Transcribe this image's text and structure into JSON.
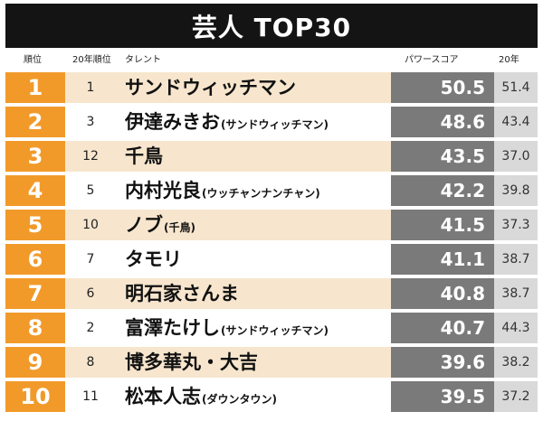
{
  "title": "芸人 TOP30",
  "headers": {
    "rank": "順位",
    "prev_rank": "20年順位",
    "talent": "タレント",
    "score": "パワースコア",
    "prev_score": "20年"
  },
  "rows": [
    {
      "rank": "1",
      "prev_rank": "1",
      "name": "サンドウィッチマン",
      "sub": "",
      "score": "50.5",
      "prev_score": "51.4"
    },
    {
      "rank": "2",
      "prev_rank": "3",
      "name": "伊達みきお",
      "sub": "(サンドウィッチマン)",
      "score": "48.6",
      "prev_score": "43.4"
    },
    {
      "rank": "3",
      "prev_rank": "12",
      "name": "千鳥",
      "sub": "",
      "score": "43.5",
      "prev_score": "37.0"
    },
    {
      "rank": "4",
      "prev_rank": "5",
      "name": "内村光良",
      "sub": "(ウッチャンナンチャン)",
      "score": "42.2",
      "prev_score": "39.8"
    },
    {
      "rank": "5",
      "prev_rank": "10",
      "name": "ノブ",
      "sub": "(千鳥)",
      "score": "41.5",
      "prev_score": "37.3"
    },
    {
      "rank": "6",
      "prev_rank": "7",
      "name": "タモリ",
      "sub": "",
      "score": "41.1",
      "prev_score": "38.7"
    },
    {
      "rank": "7",
      "prev_rank": "6",
      "name": "明石家さんま",
      "sub": "",
      "score": "40.8",
      "prev_score": "38.7"
    },
    {
      "rank": "8",
      "prev_rank": "2",
      "name": "富澤たけし",
      "sub": "(サンドウィッチマン)",
      "score": "40.7",
      "prev_score": "44.3"
    },
    {
      "rank": "9",
      "prev_rank": "8",
      "name": "博多華丸・大吉",
      "sub": "",
      "score": "39.6",
      "prev_score": "38.2"
    },
    {
      "rank": "10",
      "prev_rank": "11",
      "name": "松本人志",
      "sub": "(ダウンタウン)",
      "score": "39.5",
      "prev_score": "37.2"
    }
  ]
}
